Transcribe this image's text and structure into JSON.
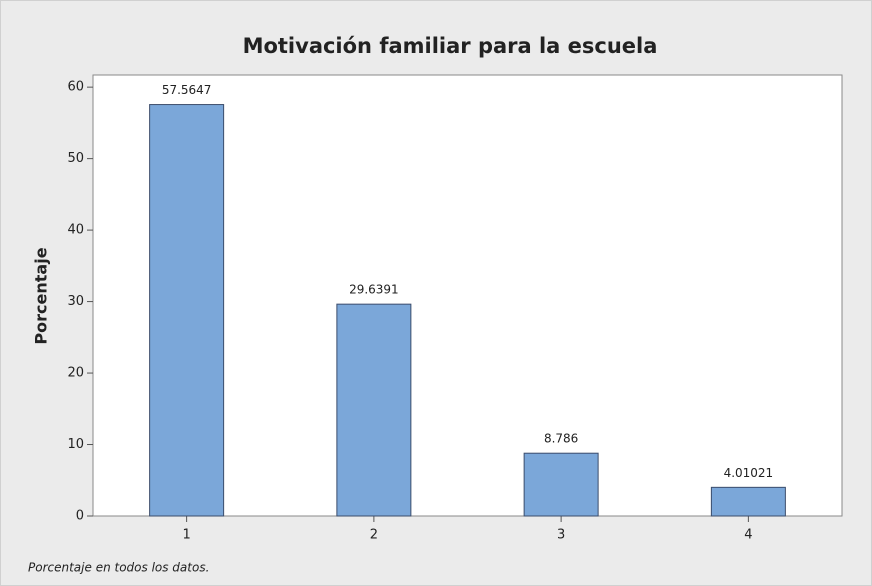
{
  "chart_data": {
    "type": "bar",
    "title": "Motivación familiar para la escuela",
    "y_label": "Porcentaje",
    "footnote": "Porcentaje en todos los datos.",
    "categories": [
      "1",
      "2",
      "3",
      "4"
    ],
    "values": [
      57.5647,
      29.6391,
      8.786,
      4.01021
    ],
    "color": "#7ba7d9",
    "ylim": [
      0,
      61.7
    ],
    "yticks": [
      0,
      10,
      20,
      30,
      40,
      50,
      60
    ],
    "grid": false
  }
}
